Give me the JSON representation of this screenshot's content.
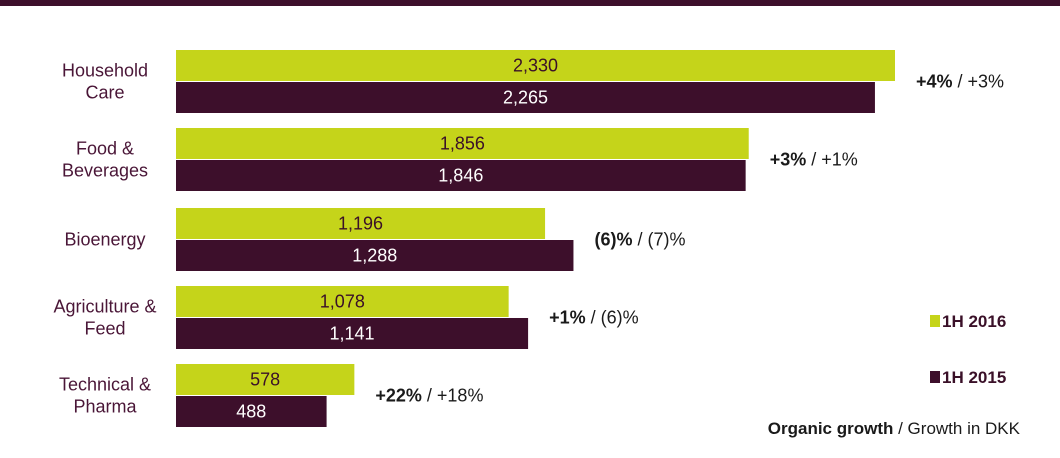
{
  "chart_data": {
    "type": "bar",
    "orientation": "horizontal",
    "categories": [
      [
        "Household",
        "Care"
      ],
      [
        "Food &",
        "Beverages"
      ],
      [
        "Bioenergy"
      ],
      [
        "Agriculture &",
        "Feed"
      ],
      [
        "Technical &",
        "Pharma"
      ]
    ],
    "series": [
      {
        "name": "1H 2016",
        "color": "#c5d41a",
        "values": [
          2330,
          1856,
          1196,
          1078,
          578
        ],
        "value_labels": [
          "2,330",
          "1,856",
          "1,196",
          "1,078",
          "578"
        ]
      },
      {
        "name": "1H 2015",
        "color": "#3d0f2b",
        "values": [
          2265,
          1846,
          1288,
          1141,
          488
        ],
        "value_labels": [
          "2,265",
          "1,846",
          "1,288",
          "1,141",
          "488"
        ]
      }
    ],
    "growth": [
      {
        "organic": "+4%",
        "dkk": "+3%"
      },
      {
        "organic": "+3%",
        "dkk": "+1%"
      },
      {
        "organic": "(6)%",
        "dkk": "(7)%"
      },
      {
        "organic": "+1%",
        "dkk": "(6)%"
      },
      {
        "organic": "+22%",
        "dkk": "+18%"
      }
    ],
    "legend": {
      "placement": "right",
      "items": [
        {
          "label": "1H 2016",
          "color": "#c5d41a"
        },
        {
          "label": "1H 2015",
          "color": "#3d0f2b"
        }
      ]
    },
    "note": {
      "bold": "Organic growth",
      "rest": " / Growth in DKK"
    },
    "xlim": [
      0,
      2330
    ],
    "grid": false
  }
}
